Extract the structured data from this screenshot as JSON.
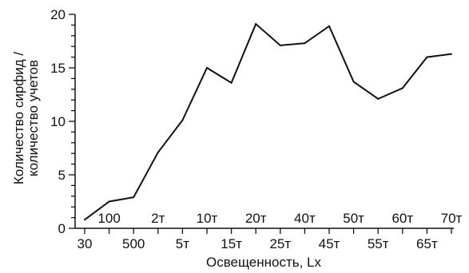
{
  "chart_data": {
    "type": "line",
    "xlabel": "Освещенность, Lx",
    "ylabel_lines": [
      "Количество сирфид /",
      "количество учетов"
    ],
    "ylim": [
      0,
      20
    ],
    "yticks": [
      0,
      5,
      10,
      15,
      20
    ],
    "categories": [
      "30",
      "100",
      "500",
      "2т",
      "5т",
      "10т",
      "15т",
      "20т",
      "25т",
      "40т",
      "45т",
      "50т",
      "55т",
      "60т",
      "65т",
      "70т"
    ],
    "lower_ticks": [
      "30",
      "500",
      "5т",
      "15т",
      "25т",
      "45т",
      "55т",
      "65т"
    ],
    "upper_ticks": [
      "100",
      "2т",
      "10т",
      "20т",
      "40т",
      "50т",
      "60т",
      "70т"
    ],
    "series": [
      {
        "values": [
          0.8,
          2.5,
          2.9,
          7.1,
          10.1,
          15.0,
          13.6,
          19.1,
          17.1,
          17.3,
          18.9,
          13.7,
          12.1,
          13.1,
          16.0,
          16.3
        ]
      }
    ],
    "grid": false,
    "colors": {
      "line": "#111111",
      "axis": "#111111"
    }
  }
}
